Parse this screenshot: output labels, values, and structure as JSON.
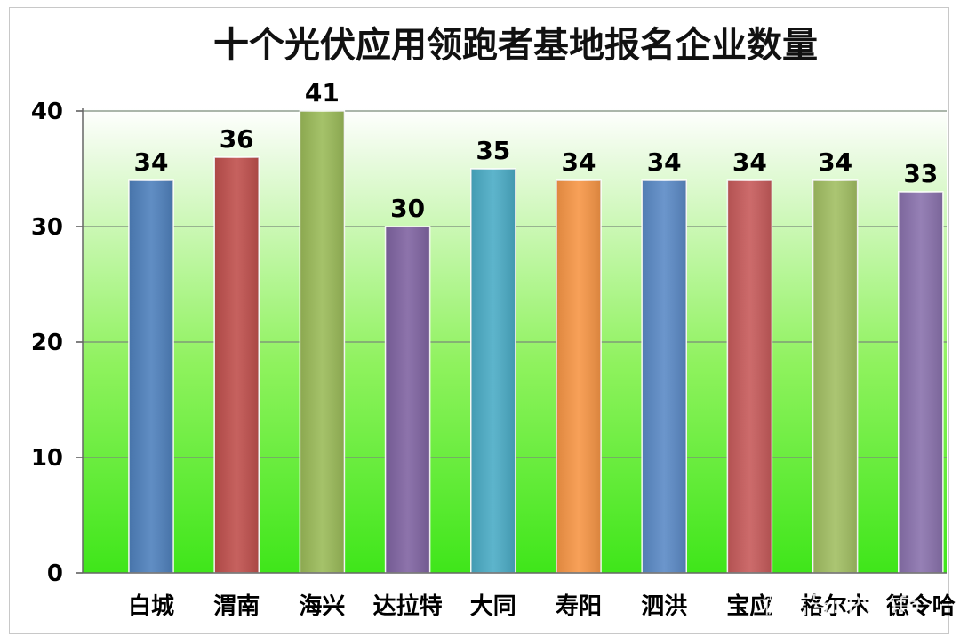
{
  "watermark": "微信号: PVinfo",
  "chart_data": {
    "type": "bar",
    "title": "十个光伏应用领跑者基地报名企业数量",
    "xlabel": "",
    "ylabel": "",
    "categories": [
      "白城",
      "渭南",
      "海兴",
      "达拉特",
      "大同",
      "寿阳",
      "泗洪",
      "宝应",
      "格尔木",
      "德令哈"
    ],
    "values": [
      34,
      36,
      41,
      30,
      35,
      34,
      34,
      34,
      34,
      33
    ],
    "colors": [
      "#4f81bd",
      "#c0504d",
      "#9bbb59",
      "#8064a2",
      "#4bacc6",
      "#f79646",
      "#5b8ac6",
      "#c75b5b",
      "#a2bf63",
      "#8a72ad"
    ],
    "ylim": [
      0,
      40
    ],
    "yticks": [
      0,
      10,
      20,
      30,
      40
    ],
    "grid": true,
    "legend": "none",
    "background": "gradient white-to-green"
  }
}
